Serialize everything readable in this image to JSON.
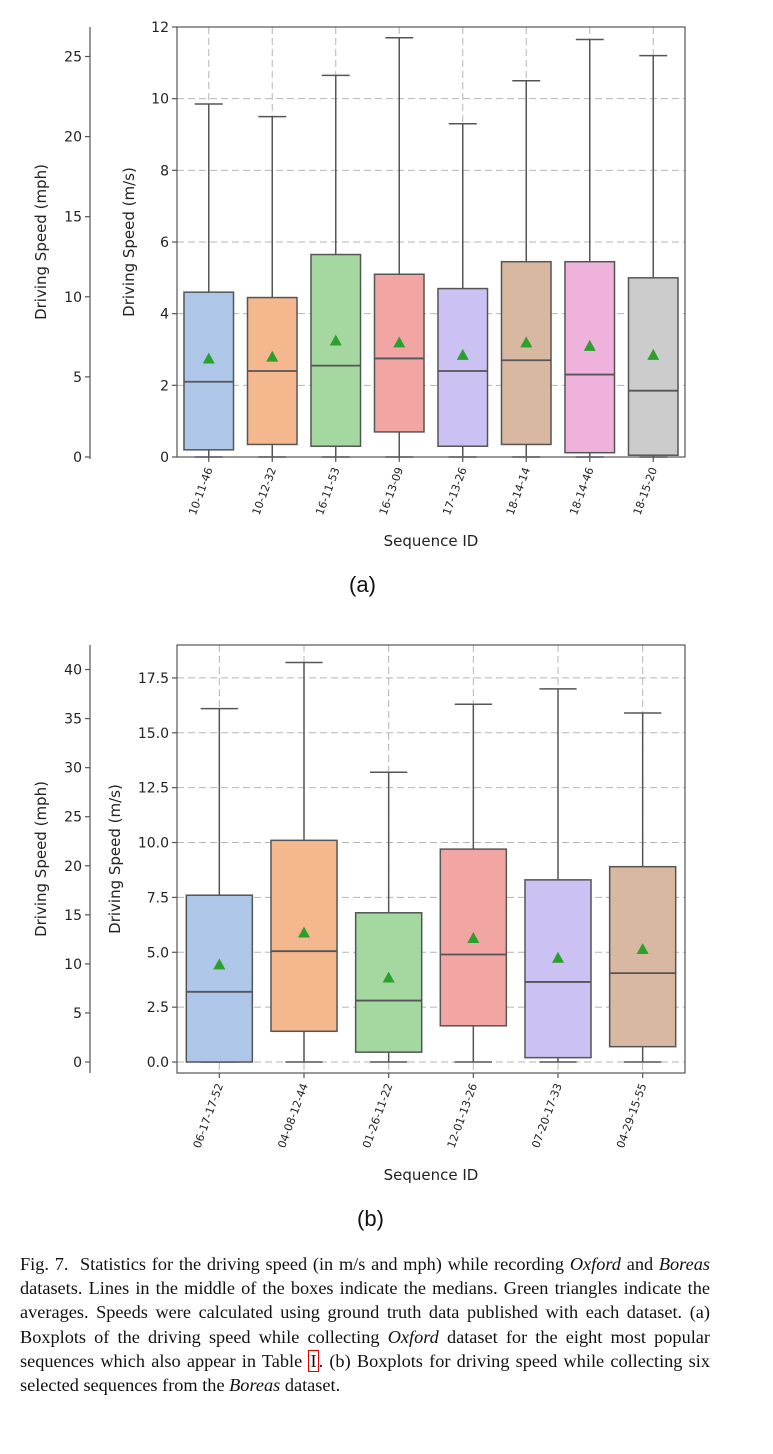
{
  "figure": {
    "panel_a_label": "(a)",
    "panel_b_label": "(b)",
    "caption": {
      "lead": "Fig. 7.",
      "t1": "Statistics for the driving speed (in m/s and mph) while recording",
      "oxford": "Oxford",
      "and": "and",
      "boreas": "Boreas",
      "t2": "datasets. Lines in the middle of the boxes indicate the medians. Green triangles indicate the averages. Speeds were calculated using ground truth data published with each dataset. (a) Boxplots of the driving speed while collecting",
      "t3": "dataset for the eight most popular sequences which also appear in Table",
      "table_ref": "I",
      "t4": ". (b) Boxplots for driving speed while collecting six selected sequences from the",
      "t5": "dataset."
    }
  },
  "chart_data": [
    {
      "type": "box",
      "panel": "(a)",
      "xlabel": "Sequence ID",
      "ylabel": "Driving Speed (m/s)",
      "ylabel_secondary": "Driving Speed (mph)",
      "ylim": [
        0,
        12
      ],
      "yticks": [
        0,
        2,
        4,
        6,
        8,
        10,
        12
      ],
      "ylim_secondary": [
        0,
        26.84
      ],
      "yticks_secondary": [
        0,
        5,
        10,
        15,
        20,
        25
      ],
      "grid": true,
      "categories": [
        "10-11-46",
        "10-12-32",
        "16-11-53",
        "16-13-09",
        "17-13-26",
        "18-14-14",
        "18-14-46",
        "18-15-20"
      ],
      "colors": [
        "#aec7e8",
        "#f4b78e",
        "#a5d8a1",
        "#f2a6a4",
        "#cbc2f3",
        "#d8b8a0",
        "#eeb2dc",
        "#cccccc"
      ],
      "whisker_low": [
        0.0,
        0.0,
        0.0,
        0.0,
        0.0,
        0.0,
        0.0,
        0.0
      ],
      "q1": [
        0.2,
        0.35,
        0.3,
        0.7,
        0.3,
        0.35,
        0.12,
        0.05
      ],
      "median": [
        2.1,
        2.4,
        2.55,
        2.75,
        2.4,
        2.7,
        2.3,
        1.85
      ],
      "q3": [
        4.6,
        4.45,
        5.65,
        5.1,
        4.7,
        5.45,
        5.45,
        5.0
      ],
      "whisker_high": [
        9.85,
        9.5,
        10.65,
        11.7,
        9.3,
        10.5,
        11.65,
        11.2
      ],
      "mean": [
        2.75,
        2.8,
        3.25,
        3.2,
        2.85,
        3.2,
        3.1,
        2.85
      ],
      "mean_marker_color": "#2ca02c"
    },
    {
      "type": "box",
      "panel": "(b)",
      "xlabel": "Sequence ID",
      "ylabel": "Driving Speed (m/s)",
      "ylabel_secondary": "Driving Speed (mph)",
      "ylim": [
        -0.5,
        19
      ],
      "yticks": [
        0.0,
        2.5,
        5.0,
        7.5,
        10.0,
        12.5,
        15.0,
        17.5
      ],
      "ylim_secondary": [
        -1.12,
        42.5
      ],
      "yticks_secondary": [
        0,
        5,
        10,
        15,
        20,
        25,
        30,
        35,
        40
      ],
      "grid": true,
      "categories": [
        "06-17-17-52",
        "04-08-12-44",
        "01-26-11-22",
        "12-01-13-26",
        "07-20-17-33",
        "04-29-15-55"
      ],
      "colors": [
        "#aec7e8",
        "#f4b78e",
        "#a5d8a1",
        "#f2a6a4",
        "#cbc2f3",
        "#d8b8a0"
      ],
      "whisker_low": [
        0.0,
        0.0,
        0.0,
        0.0,
        0.0,
        0.0
      ],
      "q1": [
        0.0,
        1.4,
        0.45,
        1.65,
        0.2,
        0.7
      ],
      "median": [
        3.2,
        5.05,
        2.8,
        4.9,
        3.65,
        4.05
      ],
      "q3": [
        7.6,
        10.1,
        6.8,
        9.7,
        8.3,
        8.9
      ],
      "whisker_high": [
        16.1,
        18.2,
        13.2,
        16.3,
        17.0,
        15.9
      ],
      "mean": [
        4.45,
        5.9,
        3.85,
        5.65,
        4.75,
        5.15
      ],
      "mean_marker_color": "#2ca02c"
    }
  ]
}
